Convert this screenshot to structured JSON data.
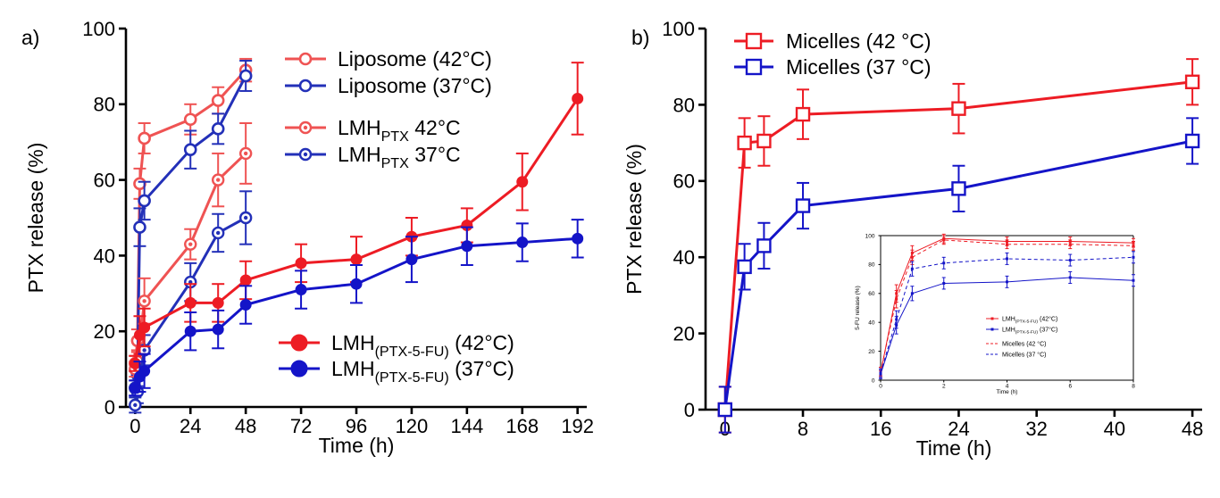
{
  "colors": {
    "red_dark": "#ed1c24",
    "red_light": "#ef5353",
    "blue_dark": "#1414c8",
    "blue_light": "#2330b8",
    "axis": "#000000"
  },
  "chart_data": [
    {
      "panel_label": "a)",
      "type": "line",
      "xlabel": "Time (h)",
      "ylabel": "PTX release (%)",
      "xlim": [
        -4,
        196
      ],
      "ylim": [
        0,
        100
      ],
      "xticks": [
        0,
        24,
        48,
        72,
        96,
        120,
        144,
        168,
        192
      ],
      "yticks": [
        0,
        20,
        40,
        60,
        80,
        100
      ],
      "legend": "top-right",
      "series": [
        {
          "name": "Liposome (42°C)",
          "legend_main": "Liposome (42°C)",
          "marker": "ring",
          "color": "#ef5353",
          "x": [
            0,
            1,
            2,
            4,
            24,
            36,
            48
          ],
          "y": [
            11.5,
            17.5,
            59,
            71,
            76,
            81,
            89
          ],
          "err": [
            2,
            3,
            4,
            4,
            4,
            3.5,
            3
          ]
        },
        {
          "name": "Liposome (37°C)",
          "legend_main": "Liposome (37°C)",
          "marker": "ring",
          "color": "#2330b8",
          "x": [
            0,
            1,
            2,
            4,
            24,
            36,
            48
          ],
          "y": [
            5,
            8.5,
            47.5,
            54.5,
            68,
            73.5,
            87.5
          ],
          "err": [
            2,
            3,
            5,
            5,
            5,
            4,
            4
          ]
        },
        {
          "name": "LMHPTX 42°C",
          "legend_main": "LMH",
          "legend_sub": "PTX",
          "legend_tail": " 42°C",
          "marker": "dotring",
          "color": "#ef5353",
          "x": [
            0,
            1,
            4,
            24,
            36,
            48
          ],
          "y": [
            10,
            12,
            28,
            43,
            60,
            67
          ],
          "err": [
            2,
            3,
            6,
            4,
            7,
            8
          ]
        },
        {
          "name": "LMHPTX 37°C",
          "legend_main": "LMH",
          "legend_sub": "PTX",
          "legend_tail": " 37°C",
          "marker": "dotring",
          "color": "#2330b8",
          "x": [
            0,
            1,
            4,
            24,
            36,
            48
          ],
          "y": [
            0.5,
            4,
            15,
            33,
            46,
            50
          ],
          "err": [
            2,
            3,
            4,
            5,
            5,
            7
          ]
        },
        {
          "name": "LMH(PTX-5-FU) (42°C)",
          "legend_main": "LMH",
          "legend_sub": "(PTX-5-FU)",
          "legend_tail": " (42°C)",
          "marker": "filled",
          "color": "#ed1c24",
          "x": [
            0,
            2,
            4,
            24,
            36,
            48,
            72,
            96,
            120,
            144,
            168,
            192
          ],
          "y": [
            11.5,
            19,
            21,
            27.5,
            27.5,
            33.5,
            38,
            39,
            45,
            48,
            59.5,
            81.5
          ],
          "err": [
            2,
            5,
            5,
            5,
            5,
            5,
            5,
            6,
            5,
            4.5,
            7.5,
            9.5
          ]
        },
        {
          "name": "LMH(PTX-5-FU) (37°C)",
          "legend_main": "LMH",
          "legend_sub": "(PTX-5-FU)",
          "legend_tail": " (37°C)",
          "marker": "filled",
          "color": "#1414c8",
          "x": [
            0,
            2,
            4,
            24,
            36,
            48,
            72,
            96,
            120,
            144,
            168,
            192
          ],
          "y": [
            5,
            8,
            9.5,
            20,
            20.5,
            27,
            31,
            32.5,
            39,
            42.5,
            43.5,
            44.5
          ],
          "err": [
            2,
            4,
            4.5,
            5,
            5,
            5,
            5,
            5,
            6,
            5,
            5,
            5
          ]
        }
      ]
    },
    {
      "panel_label": "b)",
      "type": "line",
      "xlabel": "Time (h)",
      "ylabel": "PTX release (%)",
      "xlim": [
        -2,
        49
      ],
      "ylim": [
        0,
        100
      ],
      "xticks": [
        0,
        8,
        16,
        24,
        32,
        40,
        48
      ],
      "yticks": [
        0,
        20,
        40,
        60,
        80,
        100
      ],
      "legend": "top-left",
      "series": [
        {
          "name": "Micelles (42 °C)",
          "legend_main": "Micelles (42 °C)",
          "marker": "square",
          "color": "#ed1c24",
          "x": [
            0,
            2,
            4,
            8,
            24,
            48
          ],
          "y": [
            0,
            70,
            70.5,
            77.5,
            79,
            86
          ],
          "err": [
            6,
            6.5,
            6.5,
            6.5,
            6.5,
            6
          ]
        },
        {
          "name": "Micelles (37 °C)",
          "legend_main": "Micelles (37 °C)",
          "marker": "square",
          "color": "#1414c8",
          "x": [
            0,
            2,
            4,
            8,
            24,
            48
          ],
          "y": [
            0,
            37.5,
            43,
            53.5,
            58,
            70.5
          ],
          "err": [
            6,
            6,
            6,
            6,
            6,
            6
          ]
        }
      ],
      "inset": {
        "type": "line",
        "xlabel": "Time (h)",
        "ylabel": "5-FU release (%)",
        "xlim": [
          0,
          8
        ],
        "ylim": [
          0,
          100
        ],
        "xticks": [
          0,
          2,
          4,
          6,
          8
        ],
        "yticks": [
          0,
          20,
          40,
          60,
          80,
          100
        ],
        "legend": "center",
        "series": [
          {
            "name": "LMH(PTX-5-FU) (42°C)",
            "legend_main": "LMH",
            "legend_sub": "(PTX-5-FU)",
            "legend_tail": " (42°C)",
            "style": "solid",
            "color": "#ed1c24",
            "x": [
              0,
              0.5,
              1,
              2,
              4,
              6,
              8
            ],
            "y": [
              5,
              60,
              88,
              98,
              96,
              96,
              95
            ],
            "err": [
              3,
              6,
              5,
              3,
              3,
              3,
              3
            ]
          },
          {
            "name": "LMH(PTX-5-FU) (37°C)",
            "legend_main": "LMH",
            "legend_sub": "(PTX-5-FU)",
            "legend_tail": " (37°C)",
            "style": "solid",
            "color": "#1414c8",
            "x": [
              0,
              0.5,
              1,
              2,
              4,
              6,
              8
            ],
            "y": [
              4,
              38,
              60,
              67,
              68,
              71,
              69
            ],
            "err": [
              3,
              6,
              5,
              4,
              4,
              4,
              4
            ]
          },
          {
            "name": "Micelles (42 °C)",
            "legend_main": "Micelles (42 °C)",
            "style": "dashed",
            "color": "#ed1c24",
            "x": [
              0,
              0.5,
              1,
              2,
              4,
              6,
              8
            ],
            "y": [
              6,
              56,
              85,
              97,
              94,
              94,
              93
            ],
            "err": [
              3,
              6,
              5,
              3,
              3,
              3,
              3
            ]
          },
          {
            "name": "Micelles (37 °C)",
            "legend_main": "Micelles (37 °C)",
            "style": "dashed",
            "color": "#1414c8",
            "x": [
              0,
              0.5,
              1,
              2,
              4,
              6,
              8
            ],
            "y": [
              5,
              42,
              77,
              81,
              84,
              83,
              85
            ],
            "err": [
              3,
              6,
              5,
              4,
              4,
              4,
              4
            ]
          }
        ]
      }
    }
  ]
}
